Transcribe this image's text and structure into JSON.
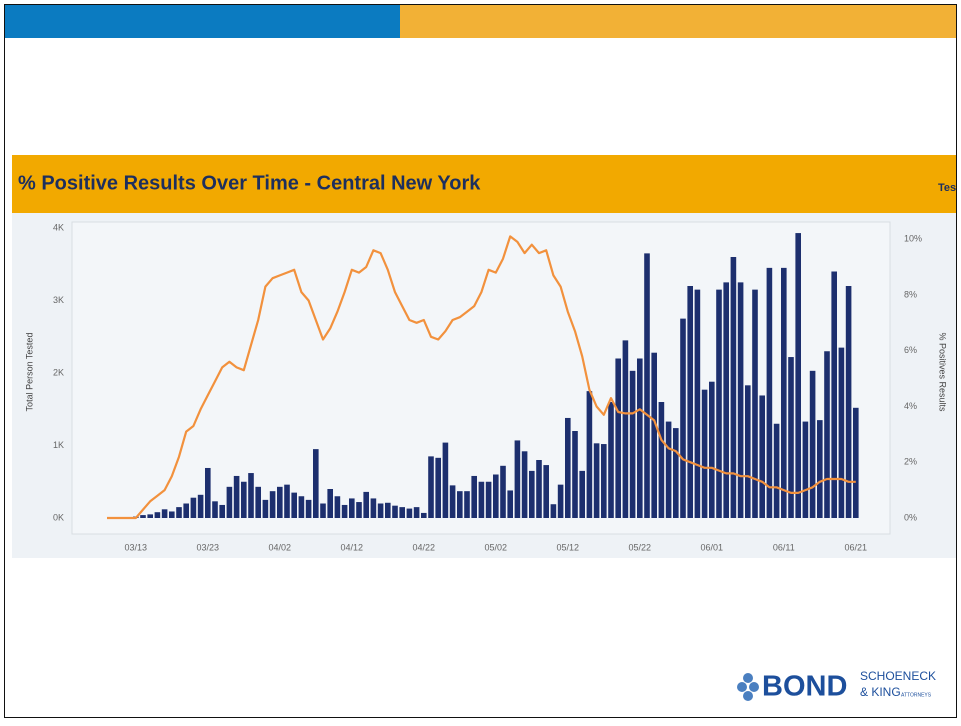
{
  "header_right": "Tes",
  "logo": {
    "brand": "BOND",
    "line1": "SCHOENECK",
    "line2": "& KING",
    "line3": "ATTORNEYS"
  },
  "chart_data": {
    "type": "combo",
    "title": "% Positive Results Over Time - Central New York",
    "ylabel": "Total Person Tested",
    "y2label": "% Positives Results",
    "categories": [
      null,
      null,
      null,
      null,
      "03/13",
      null,
      null,
      null,
      null,
      null,
      null,
      null,
      null,
      null,
      "03/23",
      null,
      null,
      null,
      null,
      null,
      null,
      null,
      null,
      null,
      "04/02",
      null,
      null,
      null,
      null,
      null,
      null,
      null,
      null,
      null,
      "04/12",
      null,
      null,
      null,
      null,
      null,
      null,
      null,
      null,
      null,
      "04/22",
      null,
      null,
      null,
      null,
      null,
      null,
      null,
      null,
      null,
      "05/02",
      null,
      null,
      null,
      null,
      null,
      null,
      null,
      null,
      null,
      "05/12",
      null,
      null,
      null,
      null,
      null,
      null,
      null,
      null,
      null,
      "05/22",
      null,
      null,
      null,
      null,
      null,
      null,
      null,
      null,
      null,
      "06/01",
      null,
      null,
      null,
      null,
      null,
      null,
      null,
      null,
      null,
      "06/11",
      null,
      null,
      null,
      null,
      null,
      null,
      null,
      null,
      null,
      "06/21"
    ],
    "series": [
      {
        "type": "bar",
        "color": "#1d2f6e",
        "values": [
          0,
          0,
          0,
          0,
          20,
          40,
          50,
          80,
          120,
          90,
          150,
          200,
          280,
          320,
          690,
          230,
          180,
          430,
          580,
          500,
          620,
          430,
          250,
          370,
          430,
          460,
          350,
          300,
          250,
          950,
          200,
          400,
          300,
          180,
          270,
          220,
          360,
          270,
          200,
          210,
          170,
          150,
          130,
          150,
          70,
          850,
          830,
          1040,
          450,
          370,
          370,
          580,
          500,
          500,
          600,
          720,
          380,
          1070,
          920,
          650,
          800,
          730,
          190,
          460,
          1380,
          1200,
          650,
          1750,
          1030,
          1020,
          1600,
          2200,
          2450,
          2030,
          2200,
          3650,
          2280,
          1600,
          1330,
          1240,
          2750,
          3200,
          3150,
          1770,
          1880,
          3150,
          3250,
          3600,
          3250,
          1830,
          3150,
          1690,
          3450,
          1300,
          3450,
          2220,
          3930,
          1330,
          2030,
          1350,
          2300,
          3400,
          2350,
          3200,
          1520
        ]
      },
      {
        "type": "line",
        "color": "#f2913d",
        "axis": "y2",
        "values": [
          0,
          0,
          0,
          0,
          0,
          0.3,
          0.6,
          0.8,
          1.0,
          1.5,
          2.2,
          3.1,
          3.3,
          3.9,
          4.4,
          4.9,
          5.4,
          5.6,
          5.4,
          5.3,
          6.2,
          7.1,
          8.3,
          8.6,
          8.7,
          8.8,
          8.9,
          8.1,
          7.8,
          7.1,
          6.4,
          6.8,
          7.4,
          8.1,
          8.9,
          8.8,
          9.0,
          9.6,
          9.5,
          8.9,
          8.1,
          7.6,
          7.1,
          7.0,
          7.1,
          6.5,
          6.4,
          6.7,
          7.1,
          7.2,
          7.4,
          7.6,
          8.1,
          8.9,
          8.8,
          9.3,
          10.1,
          9.9,
          9.5,
          9.8,
          9.5,
          9.6,
          8.7,
          8.3,
          7.4,
          6.7,
          5.8,
          4.6,
          4.0,
          3.7,
          4.3,
          3.8,
          3.75,
          3.75,
          3.9,
          3.7,
          3.5,
          2.8,
          2.5,
          2.4,
          2.1,
          2.0,
          1.9,
          1.8,
          1.8,
          1.7,
          1.6,
          1.6,
          1.5,
          1.5,
          1.4,
          1.3,
          1.1,
          1.1,
          1.0,
          0.9,
          0.9,
          1.0,
          1.1,
          1.3,
          1.4,
          1.4,
          1.4,
          1.3,
          1.3
        ]
      }
    ],
    "ylim": [
      0,
      4000
    ],
    "yticks": [
      {
        "value": 0,
        "label": "0K"
      },
      {
        "value": 1000,
        "label": "1K"
      },
      {
        "value": 2000,
        "label": "2K"
      },
      {
        "value": 3000,
        "label": "3K"
      },
      {
        "value": 4000,
        "label": "4K"
      }
    ],
    "y2lim": [
      0,
      10.4
    ],
    "y2ticks": [
      {
        "value": 0,
        "label": "0%"
      },
      {
        "value": 2,
        "label": "2%"
      },
      {
        "value": 4,
        "label": "4%"
      },
      {
        "value": 6,
        "label": "6%"
      },
      {
        "value": 8,
        "label": "8%"
      },
      {
        "value": 10,
        "label": "10%"
      }
    ]
  }
}
